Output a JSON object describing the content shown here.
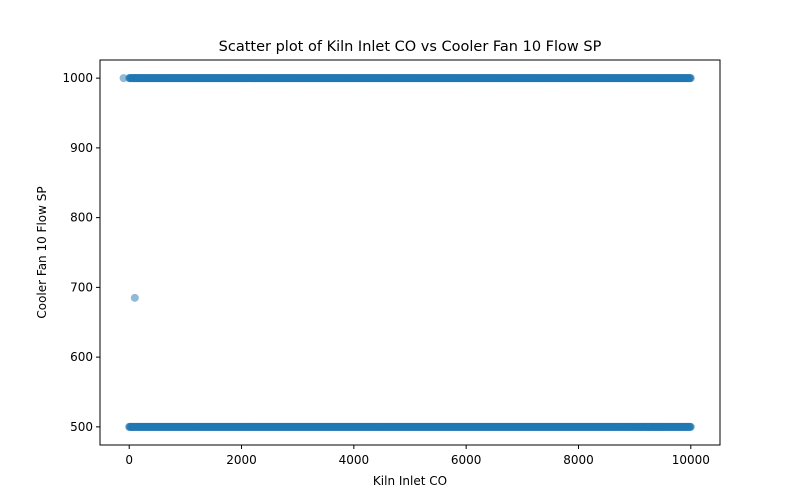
{
  "chart_data": {
    "type": "scatter",
    "title": "Scatter plot of Kiln Inlet CO vs Cooler Fan 10 Flow SP",
    "xlabel": "Kiln Inlet CO",
    "ylabel": "Cooler Fan 10 Flow SP",
    "xlim": [
      -520,
      10520
    ],
    "ylim": [
      474,
      1026
    ],
    "xticks": [
      0,
      2000,
      4000,
      6000,
      8000,
      10000
    ],
    "yticks": [
      500,
      600,
      700,
      800,
      900,
      1000
    ],
    "grid": false,
    "marker_color": "#1f77b4",
    "marker_alpha": 0.5,
    "series": [
      {
        "bands": [
          {
            "y": 1000,
            "x_min": 0,
            "x_max": 10000,
            "step": 10
          },
          {
            "y": 500,
            "x_min": 0,
            "x_max": 10000,
            "step": 10
          }
        ],
        "points": [
          {
            "x": -100,
            "y": 1000
          },
          {
            "x": 100,
            "y": 685
          },
          {
            "x": 9100,
            "y": 500
          },
          {
            "x": 9250,
            "y": 500
          },
          {
            "x": 9400,
            "y": 500
          }
        ]
      }
    ]
  }
}
